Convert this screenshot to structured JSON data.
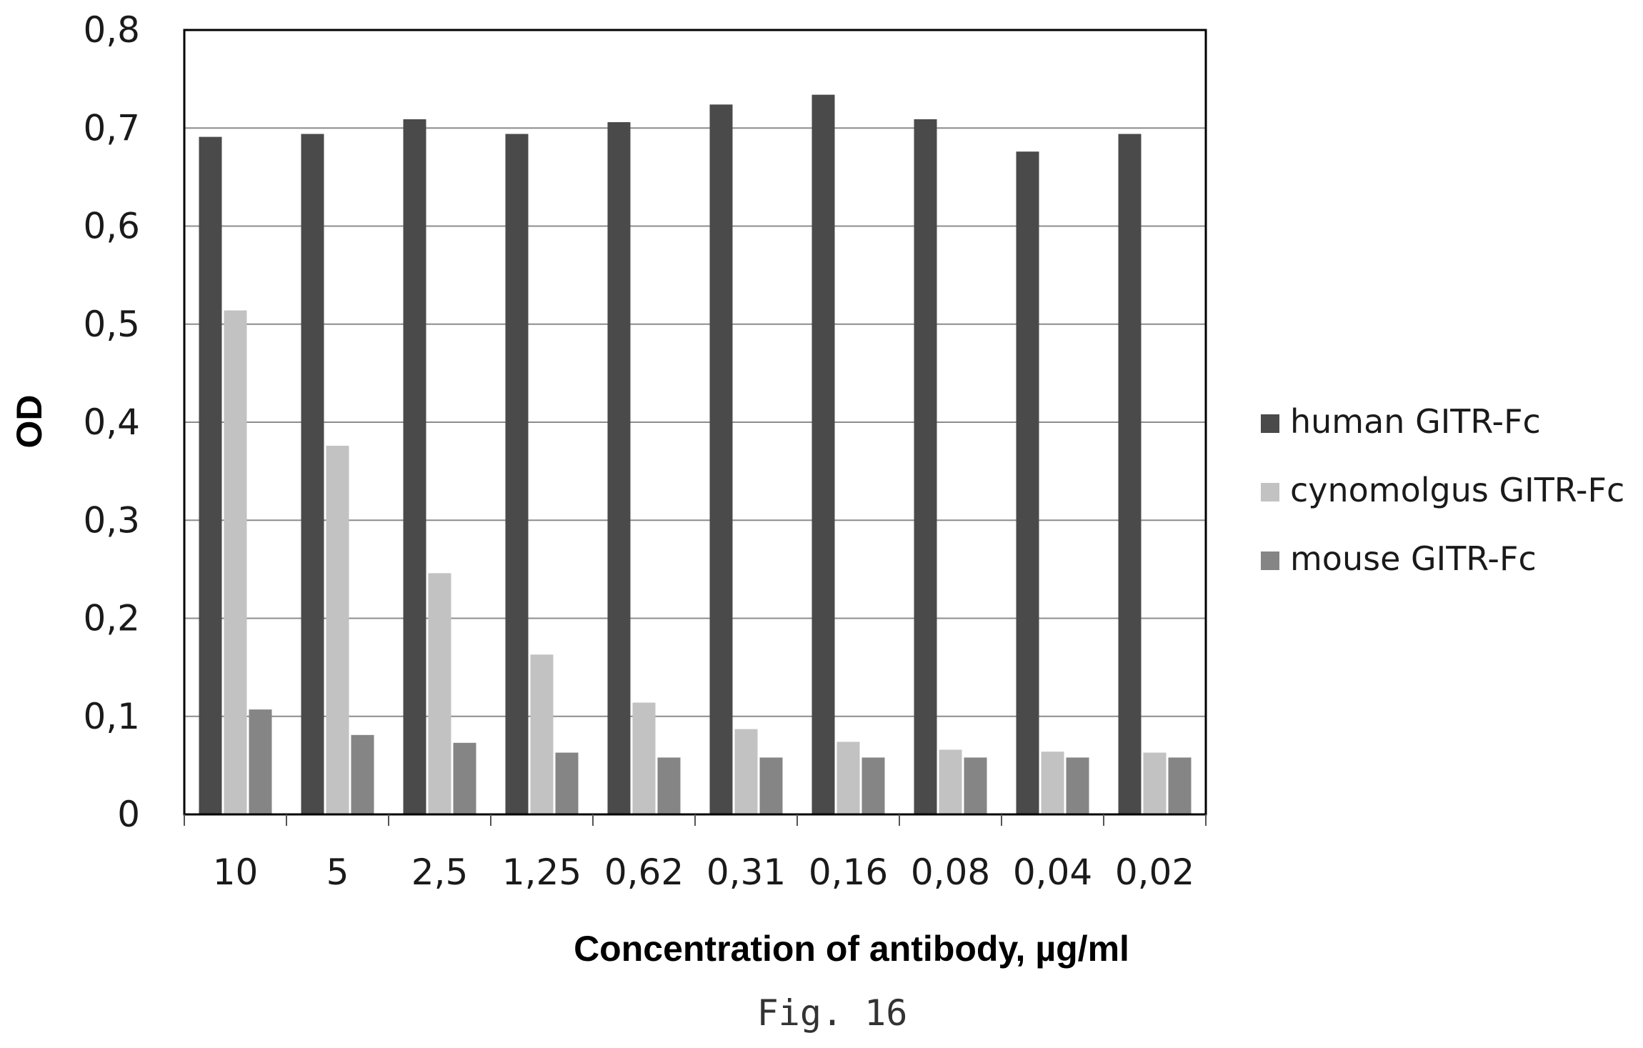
{
  "chart_data": {
    "type": "bar",
    "categories": [
      "10",
      "5",
      "2,5",
      "1,25",
      "0,62",
      "0,31",
      "0,16",
      "0,08",
      "0,04",
      "0,02"
    ],
    "series": [
      {
        "name": "human GITR-Fc",
        "color": "#4a4a4a",
        "values": [
          0.691,
          0.694,
          0.709,
          0.694,
          0.706,
          0.724,
          0.734,
          0.709,
          0.676,
          0.694
        ]
      },
      {
        "name": "cynomolgus GITR-Fc",
        "color": "#c2c2c2",
        "values": [
          0.514,
          0.376,
          0.246,
          0.163,
          0.114,
          0.087,
          0.074,
          0.066,
          0.064,
          0.063
        ]
      },
      {
        "name": "mouse GITR-Fc",
        "color": "#858585",
        "values": [
          0.107,
          0.081,
          0.073,
          0.063,
          0.058,
          0.058,
          0.058,
          0.058,
          0.058,
          0.058
        ]
      }
    ],
    "ylim": [
      0,
      0.8
    ],
    "yticks": [
      "0",
      "0,1",
      "0,2",
      "0,3",
      "0,4",
      "0,5",
      "0,6",
      "0,7",
      "0,8"
    ],
    "xlabel": "Concentration of antibody, µg/ml",
    "ylabel": "OD",
    "grid": true,
    "legend": "right"
  },
  "caption": "Fig. 16"
}
